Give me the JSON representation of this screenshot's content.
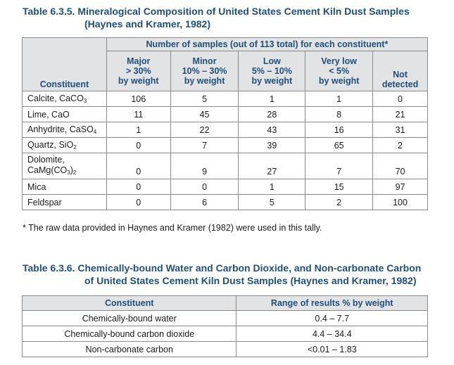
{
  "table1": {
    "title_line1": "Table 6.3.5. Mineralogical Composition of United States Cement Kiln Dust Samples",
    "title_line2": "(Haynes and Kramer, 1982)",
    "group_header": "Number of samples (out of 113 total) for each constituent*",
    "col_constituent": "Constituent",
    "columns": [
      {
        "l1": "Major",
        "l2": "> 30%",
        "l3": "by weight"
      },
      {
        "l1": "Minor",
        "l2": "10% – 30%",
        "l3": "by weight"
      },
      {
        "l1": "Low",
        "l2": "5% – 10%",
        "l3": "by weight"
      },
      {
        "l1": "Very low",
        "l2": "< 5%",
        "l3": "by weight"
      },
      {
        "l1": "",
        "l2": "Not",
        "l3": "detected"
      }
    ],
    "rows": [
      {
        "name": "Calcite, CaCO",
        "sub": "3",
        "vals": [
          "106",
          "5",
          "1",
          "1",
          "0"
        ]
      },
      {
        "name": "Lime, CaO",
        "vals": [
          "11",
          "45",
          "28",
          "8",
          "21"
        ]
      },
      {
        "name": "Anhydrite, CaSO",
        "sub": "4",
        "vals": [
          "1",
          "22",
          "43",
          "16",
          "31"
        ]
      },
      {
        "name": "Quartz, SiO",
        "sub": "2",
        "vals": [
          "0",
          "7",
          "39",
          "65",
          "2"
        ]
      },
      {
        "name_l1": "Dolomite,",
        "name_l2a": "CaMg(CO",
        "name_sub": "3",
        "name_l2b": ")",
        "name_sub2": "2",
        "vals": [
          "0",
          "9",
          "27",
          "7",
          "70"
        ]
      },
      {
        "name": "Mica",
        "vals": [
          "0",
          "0",
          "1",
          "15",
          "97"
        ]
      },
      {
        "name": "Feldspar",
        "vals": [
          "0",
          "6",
          "5",
          "2",
          "100"
        ]
      }
    ],
    "footnote": "* The raw data provided in Haynes and Kramer (1982) were used in this tally."
  },
  "table2": {
    "title_line1": "Table 6.3.6. Chemically-bound Water and Carbon Dioxide, and Non-carbonate Carbon",
    "title_line2": "of United States Cement Kiln Dust Samples (Haynes and Kramer, 1982)",
    "headers": [
      "Constituent",
      "Range of results % by weight"
    ],
    "rows": [
      [
        "Chemically-bound water",
        "0.4 – 7.7"
      ],
      [
        "Chemically-bound carbon dioxide",
        "4.4 – 34.4"
      ],
      [
        "Non-carbonate carbon",
        "<0.01 – 1.83"
      ]
    ]
  }
}
